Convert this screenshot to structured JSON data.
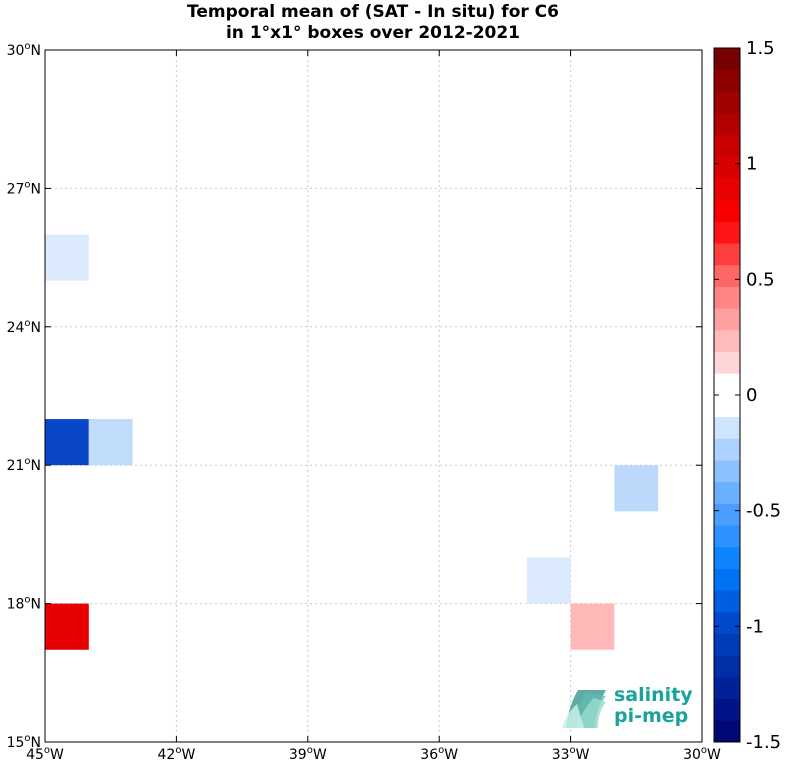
{
  "chart_data": {
    "type": "heatmap",
    "title_lines": [
      "Temporal mean of (SAT - In situ) for C6",
      "in 1°x1° boxes over 2012-2021"
    ],
    "xlabel": "",
    "ylabel": "",
    "xlim": [
      -45,
      -30
    ],
    "ylim": [
      15,
      30
    ],
    "grid": true,
    "x_ticks": [
      {
        "value": -45,
        "num": "45",
        "hemi": "W"
      },
      {
        "value": -42,
        "num": "42",
        "hemi": "W"
      },
      {
        "value": -39,
        "num": "39",
        "hemi": "W"
      },
      {
        "value": -36,
        "num": "36",
        "hemi": "W"
      },
      {
        "value": -33,
        "num": "33",
        "hemi": "W"
      },
      {
        "value": -30,
        "num": "30",
        "hemi": "W"
      }
    ],
    "y_ticks": [
      {
        "value": 15,
        "num": "15",
        "hemi": "N"
      },
      {
        "value": 18,
        "num": "18",
        "hemi": "N"
      },
      {
        "value": 21,
        "num": "21",
        "hemi": "N"
      },
      {
        "value": 24,
        "num": "24",
        "hemi": "N"
      },
      {
        "value": 27,
        "num": "27",
        "hemi": "N"
      },
      {
        "value": 30,
        "num": "30",
        "hemi": "N"
      }
    ],
    "cells": [
      {
        "lon_min": -45,
        "lat_min": 25,
        "value": -0.15,
        "color": "#dbeafc"
      },
      {
        "lon_min": -45,
        "lat_min": 21,
        "value": -1.05,
        "color": "#0a46c8"
      },
      {
        "lon_min": -44,
        "lat_min": 21,
        "value": -0.3,
        "color": "#c0dcfa"
      },
      {
        "lon_min": -45,
        "lat_min": 17,
        "value": 0.9,
        "color": "#e60000"
      },
      {
        "lon_min": -32,
        "lat_min": 20,
        "value": -0.3,
        "color": "#bcd8fa"
      },
      {
        "lon_min": -34,
        "lat_min": 18,
        "value": -0.15,
        "color": "#dbeafc"
      },
      {
        "lon_min": -33,
        "lat_min": 17,
        "value": 0.3,
        "color": "#ffb8b8"
      }
    ],
    "colorbar": {
      "range": [
        -1.5,
        1.5
      ],
      "levels": 32,
      "ticks": [
        {
          "value": 1.5,
          "label": "1.5"
        },
        {
          "value": 1,
          "label": "1"
        },
        {
          "value": 0.5,
          "label": "0.5"
        },
        {
          "value": 0,
          "label": "0"
        },
        {
          "value": -0.5,
          "label": "-0.5"
        },
        {
          "value": -1,
          "label": "-1"
        },
        {
          "value": -1.5,
          "label": "-1.5"
        }
      ]
    }
  },
  "logo": {
    "line1": "salinity",
    "line2": "pi-mep",
    "color": "#1aa39a"
  }
}
